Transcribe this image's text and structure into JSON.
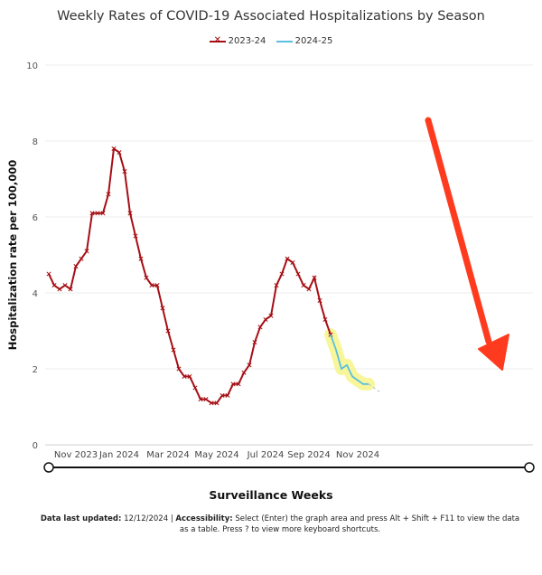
{
  "chart_data": {
    "type": "line",
    "title": "Weekly Rates of COVID-19 Associated Hospitalizations by Season",
    "xlabel": "Surveillance Weeks",
    "ylabel": "Hospitalization rate per 100,000",
    "ylim": [
      0,
      10
    ],
    "yticks": [
      "0",
      "2",
      "4",
      "6",
      "8",
      "10"
    ],
    "xticks": [
      "Nov 2023",
      "Jan 2024",
      "Mar 2024",
      "May 2024",
      "Jul 2024",
      "Sep 2024",
      "Nov 2024"
    ],
    "grid": true,
    "legend_position": "top-center",
    "series": [
      {
        "name": "2023-24",
        "color": "#a50f15",
        "marker": "x",
        "values": [
          4.5,
          4.2,
          4.1,
          4.2,
          4.1,
          4.7,
          4.9,
          5.1,
          6.1,
          6.1,
          6.1,
          6.6,
          7.8,
          7.7,
          7.2,
          6.1,
          5.5,
          4.9,
          4.4,
          4.2,
          4.2,
          3.6,
          3.0,
          2.5,
          2.0,
          1.8,
          1.8,
          1.5,
          1.2,
          1.2,
          1.1,
          1.1,
          1.3,
          1.3,
          1.6,
          1.6,
          1.9,
          2.1,
          2.7,
          3.1,
          3.3,
          3.4,
          4.2,
          4.5,
          4.9,
          4.8,
          4.5,
          4.2,
          4.1,
          4.4,
          3.8,
          3.3,
          2.9
        ]
      },
      {
        "name": "2024-25",
        "color": "#5bbfe0",
        "start_index": 52,
        "values": [
          2.9,
          2.5,
          2.0,
          2.1,
          1.8,
          1.7,
          1.6,
          1.6
        ],
        "projection": [
          1.6,
          1.5,
          1.4
        ]
      }
    ]
  },
  "footnote": {
    "updated_label": "Data last updated:",
    "updated_value": "12/12/2024",
    "separator": "|",
    "access_label": "Accessibility:",
    "access_text": "Select (Enter) the graph area and press Alt + Shift + F11 to view the data as a table. Press ? to view more keyboard shortcuts."
  },
  "annotation": {
    "arrow_color": "#ff3b1f",
    "highlight_color": "#f7f58a"
  }
}
